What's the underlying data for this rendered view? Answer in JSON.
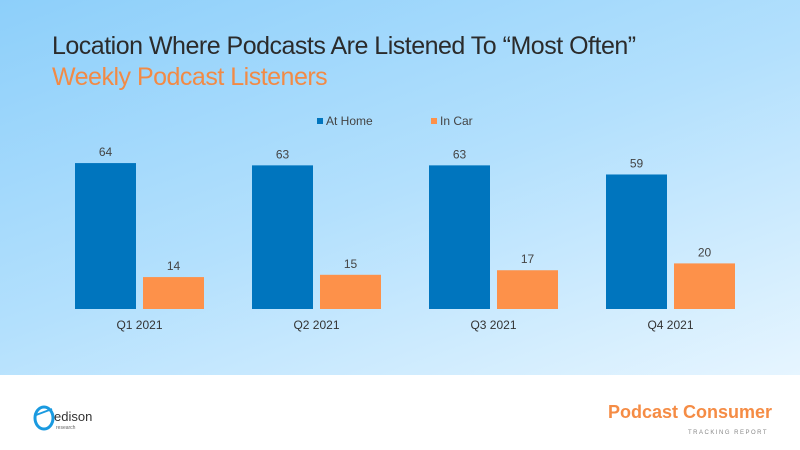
{
  "header": {
    "title": "Location Where Podcasts Are Listened To “Most Often”",
    "subtitle": "Weekly Podcast Listeners"
  },
  "chart_data": {
    "type": "bar",
    "categories": [
      "Q1 2021",
      "Q2 2021",
      "Q3 2021",
      "Q4 2021"
    ],
    "series": [
      {
        "name": "At Home",
        "values": [
          64,
          63,
          63,
          59
        ],
        "color": "#0075be"
      },
      {
        "name": "In Car",
        "values": [
          14,
          15,
          17,
          20
        ],
        "color": "#fd914a"
      }
    ],
    "legend": "top-center",
    "grid": false,
    "ylim": [
      0,
      70
    ]
  },
  "footer": {
    "logo_text": "edison",
    "logo_sub": "research",
    "brand": "Podcast Consumer",
    "brand_sub": "TRACKING REPORT"
  }
}
